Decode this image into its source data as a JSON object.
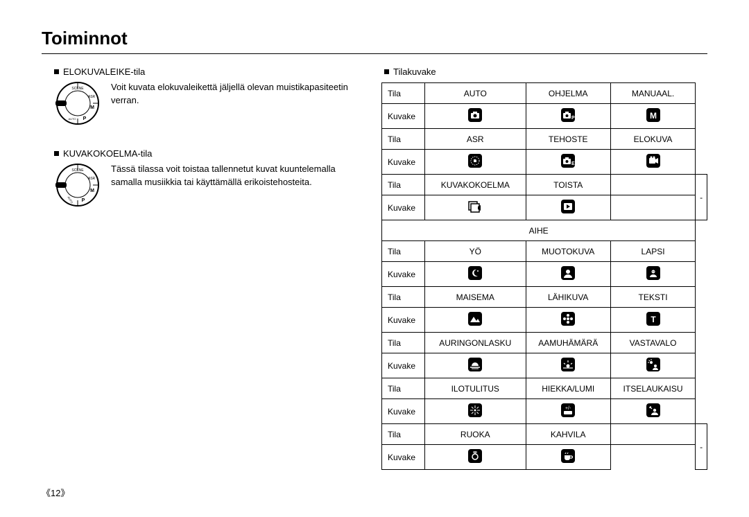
{
  "page": {
    "title": "Toiminnot",
    "number": "《12》"
  },
  "left": {
    "sections": [
      {
        "heading": "ELOKUVALEIKE-tila",
        "description": "Voit kuvata elokuvaleikettä jäljellä olevan muistikapasiteetin verran."
      },
      {
        "heading": "KUVAKOKOELMA-tila",
        "description": "Tässä tilassa voit toistaa tallennetut kuvat kuuntelemalla samalla musiikkia tai käyttämällä erikoistehosteita."
      }
    ]
  },
  "right": {
    "heading": "Tilakuvake",
    "labels": {
      "tila": "Tila",
      "kuvake": "Kuvake",
      "aihe": "AIHE",
      "dash": "-"
    },
    "rows": [
      {
        "type": "tila",
        "cells": [
          "AUTO",
          "OHJELMA",
          "MANUAAL."
        ]
      },
      {
        "type": "kuvake",
        "icons": [
          "camera",
          "camera-p",
          "M"
        ]
      },
      {
        "type": "tila",
        "cells": [
          "ASR",
          "TEHOSTE",
          "ELOKUVA"
        ]
      },
      {
        "type": "kuvake",
        "icons": [
          "hand",
          "camera-e",
          "film"
        ]
      },
      {
        "type": "tila",
        "cells": [
          "KUVAKOKOELMA",
          "TOISTA"
        ],
        "trailing_dash_rowspan": 2
      },
      {
        "type": "kuvake",
        "icons": [
          "gallery",
          "play"
        ],
        "short": true
      },
      {
        "type": "aihe"
      },
      {
        "type": "tila",
        "cells": [
          "YÖ",
          "MUOTOKUVA",
          "LAPSI"
        ]
      },
      {
        "type": "kuvake",
        "icons": [
          "moon",
          "portrait",
          "child"
        ]
      },
      {
        "type": "tila",
        "cells": [
          "MAISEMA",
          "LÄHIKUVA",
          "TEKSTI"
        ]
      },
      {
        "type": "kuvake",
        "icons": [
          "mountain",
          "flower",
          "T"
        ]
      },
      {
        "type": "tila",
        "cells": [
          "AURINGONLASKU",
          "AAMUHÄMÄRÄ",
          "VASTAVALO"
        ]
      },
      {
        "type": "kuvake",
        "icons": [
          "sunset",
          "dawn",
          "backlight"
        ]
      },
      {
        "type": "tila",
        "cells": [
          "ILOTULITUS",
          "HIEKKA/LUMI",
          "ITSELAUKAISU"
        ]
      },
      {
        "type": "kuvake",
        "icons": [
          "firework",
          "snow",
          "selftimer"
        ]
      },
      {
        "type": "tila",
        "cells": [
          "RUOKA",
          "KAHVILA"
        ],
        "trailing_dash_rowspan": 2
      },
      {
        "type": "kuvake",
        "icons": [
          "food",
          "cafe"
        ],
        "short": true
      }
    ]
  },
  "colors": {
    "text": "#000000",
    "background": "#ffffff",
    "border": "#000000",
    "icon_bg": "#000000",
    "icon_fg": "#ffffff"
  },
  "typography": {
    "title_fontsize": 26,
    "body_fontsize": 13,
    "table_fontsize": 12
  }
}
